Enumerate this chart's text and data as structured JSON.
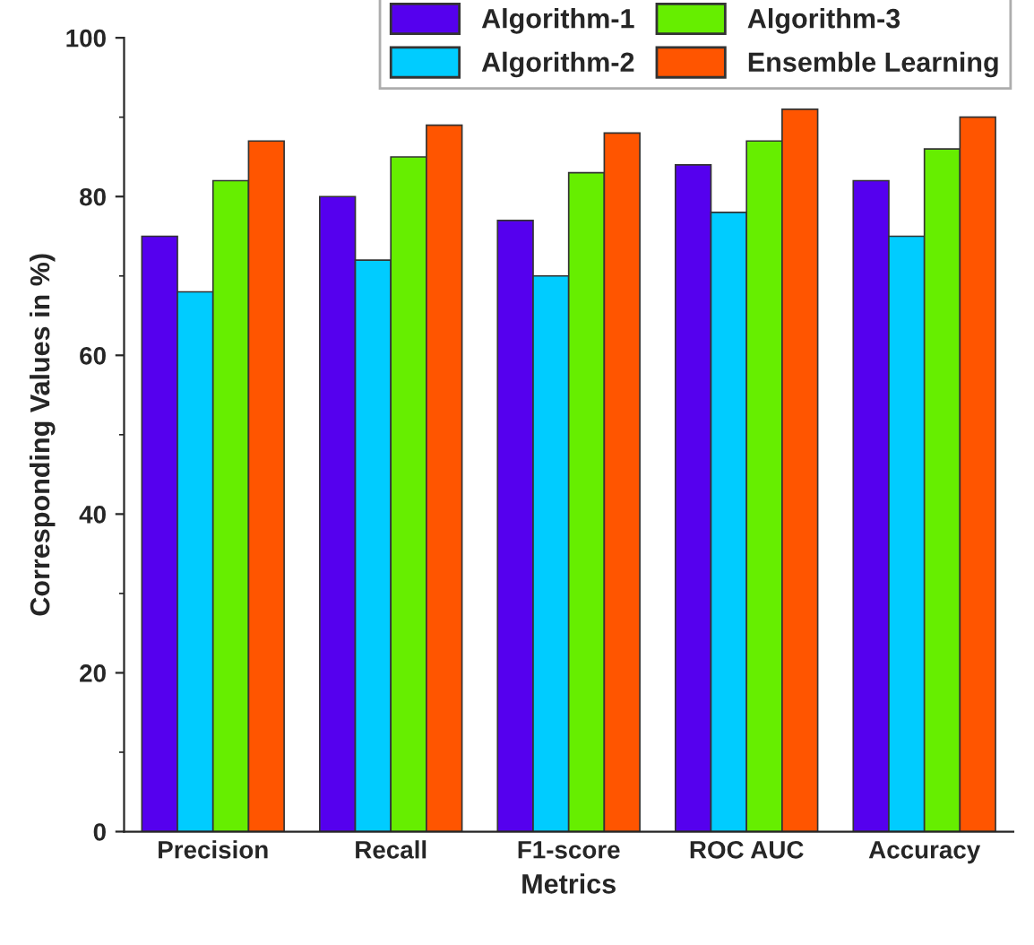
{
  "chart_data": {
    "type": "bar",
    "xlabel": "Metrics",
    "ylabel": "Corresponding Values in %)",
    "categories": [
      "Precision",
      "Recall",
      "F1-score",
      "ROC AUC",
      "Accuracy"
    ],
    "series": [
      {
        "name": "Algorithm-1",
        "color": "#5500ee",
        "values": [
          75,
          80,
          77,
          84,
          82
        ]
      },
      {
        "name": "Algorithm-2",
        "color": "#00ccff",
        "values": [
          68,
          72,
          70,
          78,
          75
        ]
      },
      {
        "name": "Algorithm-3",
        "color": "#66ee00",
        "values": [
          82,
          85,
          83,
          87,
          86
        ]
      },
      {
        "name": "Ensemble Learning",
        "color": "#ff5500",
        "values": [
          87,
          89,
          88,
          91,
          90
        ]
      }
    ],
    "ylim": [
      0,
      100
    ],
    "yticks": [
      0,
      20,
      40,
      60,
      80,
      100
    ],
    "grid": false,
    "legend": "top right"
  }
}
